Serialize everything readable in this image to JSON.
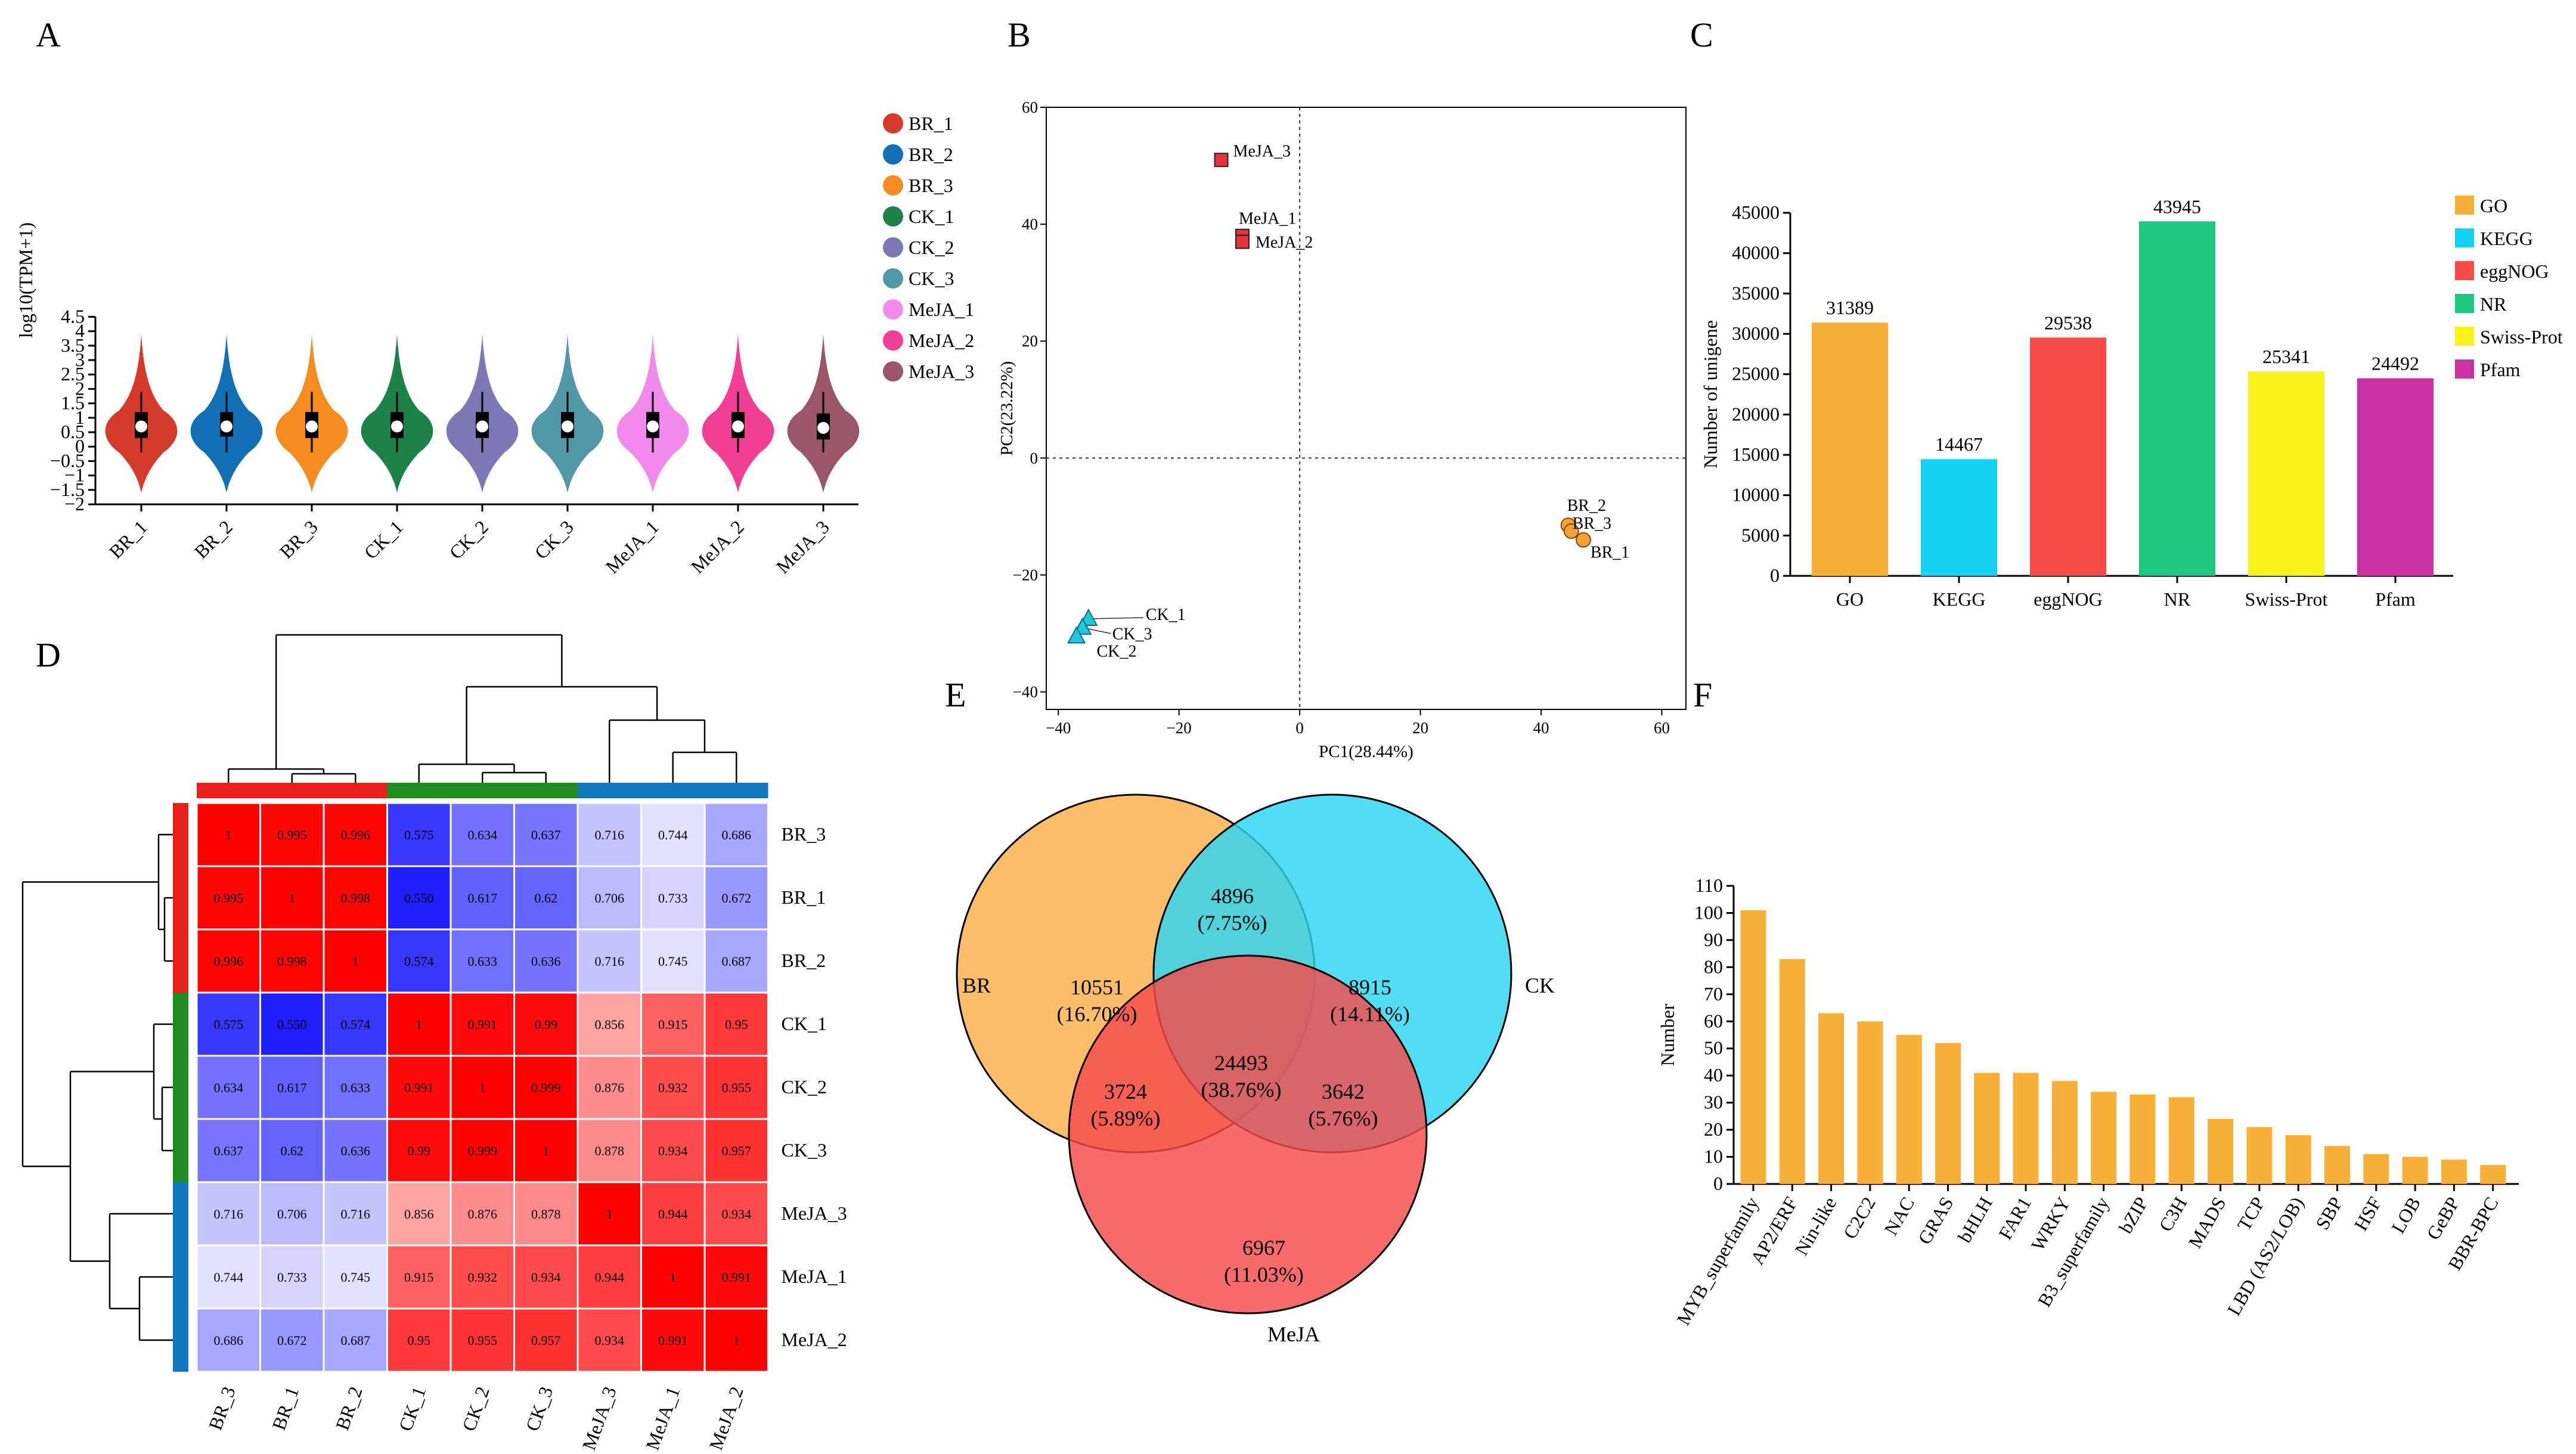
{
  "chart_data": [
    {
      "panel": "A",
      "type": "violin",
      "ylabel": "log10(TPM+1)",
      "ylim": [
        -2,
        4.5
      ],
      "yticks": [
        "−2",
        "−1.5",
        "−1",
        "−0.5",
        "0",
        "0.5",
        "1",
        "1.5",
        "2",
        "2.5",
        "3",
        "3.5",
        "4",
        "4.5"
      ],
      "samples": [
        {
          "name": "BR_1",
          "color": "#D63A2A",
          "median": 0.7,
          "q1": 0.3,
          "q3": 1.2,
          "lo": -0.2,
          "hi": 1.9
        },
        {
          "name": "BR_2",
          "color": "#1170B5",
          "median": 0.7,
          "q1": 0.35,
          "q3": 1.2,
          "lo": -0.2,
          "hi": 1.9
        },
        {
          "name": "BR_3",
          "color": "#F58C1F",
          "median": 0.7,
          "q1": 0.3,
          "q3": 1.2,
          "lo": -0.2,
          "hi": 1.9
        },
        {
          "name": "CK_1",
          "color": "#1C8248",
          "median": 0.7,
          "q1": 0.3,
          "q3": 1.2,
          "lo": -0.2,
          "hi": 1.9
        },
        {
          "name": "CK_2",
          "color": "#7A79B6",
          "median": 0.7,
          "q1": 0.3,
          "q3": 1.2,
          "lo": -0.2,
          "hi": 1.9
        },
        {
          "name": "CK_3",
          "color": "#5298A8",
          "median": 0.7,
          "q1": 0.3,
          "q3": 1.2,
          "lo": -0.2,
          "hi": 1.9
        },
        {
          "name": "MeJA_1",
          "color": "#F18AEC",
          "median": 0.7,
          "q1": 0.3,
          "q3": 1.2,
          "lo": -0.2,
          "hi": 1.9
        },
        {
          "name": "MeJA_2",
          "color": "#F23F93",
          "median": 0.7,
          "q1": 0.3,
          "q3": 1.2,
          "lo": -0.2,
          "hi": 1.9
        },
        {
          "name": "MeJA_3",
          "color": "#9C5567",
          "median": 0.65,
          "q1": 0.25,
          "q3": 1.15,
          "lo": -0.2,
          "hi": 1.9
        }
      ]
    },
    {
      "panel": "B",
      "type": "scatter",
      "xlabel": "PC1(28.44%)",
      "ylabel": "PC2(23.22%)",
      "xlim": [
        -42,
        64
      ],
      "ylim": [
        -43,
        60
      ],
      "xticks": [
        -40,
        -20,
        0,
        20,
        40,
        60
      ],
      "xtick_labels": [
        "−40",
        "−20",
        "0",
        "20",
        "40",
        "60"
      ],
      "yticks": [
        -40,
        -20,
        0,
        20,
        40,
        60
      ],
      "ytick_labels": [
        "−40",
        "−20",
        "0",
        "20",
        "40",
        "60"
      ],
      "groups": [
        {
          "name": "MeJA",
          "marker": "square",
          "color": "#E8323E",
          "points": [
            {
              "label": "MeJA_3",
              "x": -13,
              "y": 51
            },
            {
              "label": "MeJA_1",
              "x": -9.5,
              "y": 38
            },
            {
              "label": "MeJA_2",
              "x": -9.5,
              "y": 37
            }
          ]
        },
        {
          "name": "BR",
          "marker": "circle",
          "color": "#F7A230",
          "points": [
            {
              "label": "BR_2",
              "x": 44.5,
              "y": -11.5
            },
            {
              "label": "BR_3",
              "x": 45,
              "y": -12.5
            },
            {
              "label": "BR_1",
              "x": 47,
              "y": -14
            }
          ]
        },
        {
          "name": "CK",
          "marker": "triangle",
          "color": "#1EC6DE",
          "points": [
            {
              "label": "CK_1",
              "x": -35,
              "y": -27.5
            },
            {
              "label": "CK_3",
              "x": -36,
              "y": -29
            },
            {
              "label": "CK_2",
              "x": -37,
              "y": -30.5
            }
          ]
        }
      ]
    },
    {
      "panel": "C",
      "type": "bar",
      "ylabel": "Number of unigene",
      "ylim": [
        0,
        45000
      ],
      "yticks": [
        0,
        5000,
        10000,
        15000,
        20000,
        25000,
        30000,
        35000,
        40000,
        45000
      ],
      "categories": [
        "GO",
        "KEGG",
        "eggNOG",
        "NR",
        "Swiss-Prot",
        "Pfam"
      ],
      "values": [
        31389,
        14467,
        29538,
        43945,
        25341,
        24492
      ],
      "colors": [
        "#F8B038",
        "#14D3F2",
        "#F74A4A",
        "#1FC880",
        "#FAF21B",
        "#C833A0"
      ],
      "legend": [
        "GO",
        "KEGG",
        "eggNOG",
        "NR",
        "Swiss-Prot",
        "Pfam"
      ]
    },
    {
      "panel": "D",
      "type": "heatmap",
      "cols": [
        "BR_3",
        "BR_1",
        "BR_2",
        "CK_1",
        "CK_2",
        "CK_3",
        "MeJA_3",
        "MeJA_1",
        "MeJA_2"
      ],
      "rows": [
        "BR_3",
        "BR_1",
        "BR_2",
        "CK_1",
        "CK_2",
        "CK_3",
        "MeJA_3",
        "MeJA_1",
        "MeJA_2"
      ],
      "values": [
        [
          "1",
          "0.995",
          "0.996",
          "0.575",
          "0.634",
          "0.637",
          "0.716",
          "0.744",
          "0.686"
        ],
        [
          "0.995",
          "1",
          "0.998",
          "0.550",
          "0.617",
          "0.62",
          "0.706",
          "0.733",
          "0.672"
        ],
        [
          "0.996",
          "0.998",
          "1",
          "0.574",
          "0.633",
          "0.636",
          "0.716",
          "0.745",
          "0.687"
        ],
        [
          "0.575",
          "0.550",
          "0.574",
          "1",
          "0.991",
          "0.99",
          "0.856",
          "0.915",
          "0.95"
        ],
        [
          "0.634",
          "0.617",
          "0.633",
          "0.991",
          "1",
          "0.999",
          "0.876",
          "0.932",
          "0.955"
        ],
        [
          "0.637",
          "0.62",
          "0.636",
          "0.99",
          "0.999",
          "1",
          "0.878",
          "0.934",
          "0.957"
        ],
        [
          "0.716",
          "0.706",
          "0.716",
          "0.856",
          "0.876",
          "0.878",
          "1",
          "0.944",
          "0.934"
        ],
        [
          "0.744",
          "0.733",
          "0.745",
          "0.915",
          "0.932",
          "0.934",
          "0.944",
          "1",
          "0.991"
        ],
        [
          "0.686",
          "0.672",
          "0.687",
          "0.95",
          "0.955",
          "0.957",
          "0.934",
          "0.991",
          "1"
        ]
      ],
      "group_colors": [
        "#E7211A",
        "#1E8C1E",
        "#1177BE"
      ]
    },
    {
      "panel": "E",
      "type": "venn",
      "sets": [
        "BR",
        "CK",
        "MeJA"
      ],
      "colors": [
        "#FBAF4A",
        "#2BD6F2",
        "#F54A4A"
      ],
      "regions": [
        {
          "sets": "BR",
          "count": "10551",
          "pct": "(16.70%)"
        },
        {
          "sets": "CK",
          "count": "8915",
          "pct": "(14.11%)"
        },
        {
          "sets": "MeJA",
          "count": "6967",
          "pct": "(11.03%)"
        },
        {
          "sets": "BR&CK",
          "count": "4896",
          "pct": "(7.75%)"
        },
        {
          "sets": "BR&MeJA",
          "count": "3724",
          "pct": "(5.89%)"
        },
        {
          "sets": "CK&MeJA",
          "count": "3642",
          "pct": "(5.76%)"
        },
        {
          "sets": "BR&CK&MeJA",
          "count": "24493",
          "pct": "(38.76%)"
        }
      ]
    },
    {
      "panel": "F",
      "type": "bar",
      "ylabel": "Number",
      "ylim": [
        0,
        110
      ],
      "yticks": [
        0,
        10,
        20,
        30,
        40,
        50,
        60,
        70,
        80,
        90,
        100,
        110
      ],
      "color": "#F8B038",
      "categories": [
        "MYB_superfamily",
        "AP2/ERF",
        "Nin-like",
        "C2C2",
        "NAC",
        "GRAS",
        "bHLH",
        "FAR1",
        "WRKY",
        "B3_superfamily",
        "bZIP",
        "C3H",
        "MADS",
        "TCP",
        "LBD (AS2/LOB)",
        "SBP",
        "HSF",
        "LOB",
        "GeBP",
        "BBR-BPC"
      ],
      "values": [
        101,
        83,
        63,
        60,
        55,
        52,
        41,
        41,
        38,
        34,
        33,
        32,
        24,
        21,
        18,
        14,
        11,
        10,
        9,
        7
      ]
    }
  ]
}
